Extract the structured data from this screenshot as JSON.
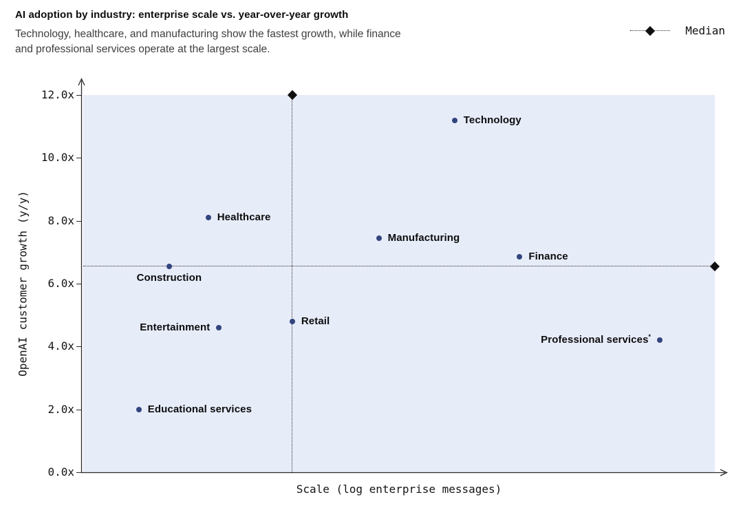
{
  "header": {
    "title": "AI adoption by industry: enterprise scale vs. year-over-year growth",
    "subtitle_lines": [
      "Technology, healthcare, and manufacturing show the fastest growth, while finance",
      "and professional services operate at the largest scale."
    ]
  },
  "legend": {
    "label": "Median"
  },
  "chart_data": {
    "type": "scatter",
    "title": "AI adoption by industry: enterprise scale vs. year-over-year growth",
    "subtitle": "Technology, healthcare, and manufacturing show the fastest growth, while finance and professional services operate at the largest scale.",
    "xlabel": "Scale (log enterprise messages)",
    "ylabel": "OpenAI customer growth (y/y)",
    "ylim": [
      0,
      12
    ],
    "xlim_relative": [
      0,
      1
    ],
    "x_ticks": "none",
    "grid": "off",
    "legend_position": "top-right",
    "yticks": [
      {
        "label": "12.0x",
        "value": 12
      },
      {
        "label": "10.0x",
        "value": 10
      },
      {
        "label": "8.0x",
        "value": 8
      },
      {
        "label": "6.0x",
        "value": 6
      },
      {
        "label": "4.0x",
        "value": 4
      },
      {
        "label": "2.0x",
        "value": 2
      },
      {
        "label": "0.0x",
        "value": 0
      }
    ],
    "points": [
      {
        "label": "Technology",
        "x": 0.588,
        "y": 11.2,
        "label_side": "right"
      },
      {
        "label": "Healthcare",
        "x": 0.198,
        "y": 8.1,
        "label_side": "right"
      },
      {
        "label": "Manufacturing",
        "x": 0.468,
        "y": 7.45,
        "label_side": "right"
      },
      {
        "label": "Finance",
        "x": 0.691,
        "y": 6.85,
        "label_side": "right"
      },
      {
        "label": "Construction",
        "x": 0.136,
        "y": 6.55,
        "label_side": "below"
      },
      {
        "label": "Retail",
        "x": 0.331,
        "y": 4.8,
        "label_side": "right"
      },
      {
        "label": "Entertainment",
        "x": 0.215,
        "y": 4.6,
        "label_side": "left"
      },
      {
        "label": "Professional services",
        "label_suffix": "*",
        "x": 0.913,
        "y": 4.2,
        "label_side": "left"
      },
      {
        "label": "Educational services",
        "x": 0.088,
        "y": 2.0,
        "label_side": "right"
      }
    ],
    "median": {
      "x": 0.331,
      "y": 6.55,
      "label": "Median"
    },
    "colors": {
      "point": "#32457e",
      "plot_bg": "#e7ecf9",
      "median_marker": "#101010",
      "text": "#0d0d0d"
    }
  }
}
